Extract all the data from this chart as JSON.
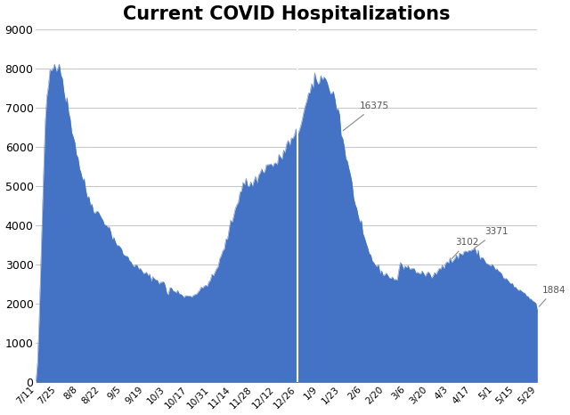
{
  "title": "Current COVID Hospitalizations",
  "title_fontsize": 15,
  "title_fontweight": "bold",
  "fill_color": "#4472C4",
  "background_color": "#FFFFFF",
  "vline_x": "12/26",
  "vline_color": "white",
  "ylim": [
    0,
    9000
  ],
  "yticks": [
    0,
    1000,
    2000,
    3000,
    4000,
    5000,
    6000,
    7000,
    8000,
    9000
  ],
  "x_tick_labels": [
    "7/11",
    "7/25",
    "8/8",
    "8/22",
    "9/5",
    "9/19",
    "10/3",
    "10/17",
    "10/31",
    "11/14",
    "11/28",
    "12/12",
    "12/26",
    "1/9",
    "1/23",
    "2/6",
    "2/20",
    "3/6",
    "3/20",
    "4/3",
    "4/17",
    "5/1",
    "5/15",
    "5/29"
  ],
  "data": {
    "7/11": 10,
    "7/12": 500,
    "7/13": 1500,
    "7/14": 2800,
    "7/15": 4200,
    "7/16": 5500,
    "7/17": 6500,
    "7/18": 7200,
    "7/19": 7600,
    "7/20": 7900,
    "7/21": 8000,
    "7/22": 8050,
    "7/23": 8080,
    "7/24": 8150,
    "7/25": 8200,
    "7/26": 8180,
    "7/27": 7950,
    "7/28": 7700,
    "7/29": 7500,
    "7/30": 7300,
    "7/31": 7100,
    "8/1": 6900,
    "8/2": 6700,
    "8/3": 6500,
    "8/4": 6300,
    "8/5": 6100,
    "8/6": 5900,
    "8/7": 5700,
    "8/8": 5500,
    "8/9": 5350,
    "8/10": 5200,
    "8/11": 5050,
    "8/12": 4900,
    "8/13": 4780,
    "8/14": 4680,
    "8/15": 4600,
    "8/16": 4530,
    "8/17": 4460,
    "8/18": 4400,
    "8/19": 4350,
    "8/20": 4300,
    "8/21": 4260,
    "8/22": 4200,
    "8/23": 4150,
    "8/24": 4100,
    "8/25": 4050,
    "8/26": 3980,
    "8/27": 3900,
    "8/28": 3820,
    "8/29": 3740,
    "8/30": 3680,
    "8/31": 3600,
    "9/1": 3520,
    "9/2": 3460,
    "9/3": 3400,
    "9/4": 3350,
    "9/5": 3300,
    "9/6": 3250,
    "9/7": 3200,
    "9/8": 3160,
    "9/9": 3120,
    "9/10": 3080,
    "9/11": 3040,
    "9/12": 3000,
    "9/13": 2960,
    "9/14": 2920,
    "9/15": 2890,
    "9/16": 2860,
    "9/17": 2830,
    "9/18": 2800,
    "9/19": 2770,
    "9/20": 2745,
    "9/21": 2720,
    "9/22": 2700,
    "9/23": 2680,
    "9/24": 2660,
    "9/25": 2640,
    "9/26": 2620,
    "9/27": 2600,
    "9/28": 2580,
    "9/29": 2560,
    "9/30": 2540,
    "10/1": 2510,
    "10/2": 2490,
    "10/3": 2300,
    "10/4": 2250,
    "10/5": 2380,
    "10/6": 2400,
    "10/7": 2350,
    "10/8": 2300,
    "10/9": 2280,
    "10/10": 2310,
    "10/11": 2280,
    "10/12": 2260,
    "10/13": 2230,
    "10/14": 2210,
    "10/15": 2200,
    "10/16": 2200,
    "10/17": 2200,
    "10/18": 2210,
    "10/19": 2220,
    "10/20": 2230,
    "10/21": 2250,
    "10/22": 2270,
    "10/23": 2300,
    "10/24": 2330,
    "10/25": 2360,
    "10/26": 2400,
    "10/27": 2440,
    "10/28": 2480,
    "10/29": 2520,
    "10/30": 2560,
    "10/31": 2600,
    "11/1": 2660,
    "11/2": 2720,
    "11/3": 2800,
    "11/4": 2900,
    "11/5": 3000,
    "11/6": 3100,
    "11/7": 3200,
    "11/8": 3320,
    "11/9": 3450,
    "11/10": 3580,
    "11/11": 3720,
    "11/12": 3860,
    "11/13": 4000,
    "11/14": 4140,
    "11/15": 4280,
    "11/16": 4420,
    "11/17": 4560,
    "11/18": 4700,
    "11/19": 4840,
    "11/20": 4960,
    "11/21": 5060,
    "11/22": 5100,
    "11/23": 5080,
    "11/24": 5050,
    "11/25": 5020,
    "11/26": 5050,
    "11/27": 5080,
    "11/28": 5110,
    "11/29": 5150,
    "11/30": 5200,
    "12/1": 5260,
    "12/2": 5320,
    "12/3": 5380,
    "12/4": 5440,
    "12/5": 5480,
    "12/6": 5500,
    "12/7": 5520,
    "12/8": 5530,
    "12/9": 5540,
    "12/10": 5550,
    "12/11": 5560,
    "12/12": 5570,
    "12/13": 5600,
    "12/14": 5650,
    "12/15": 5700,
    "12/16": 5780,
    "12/17": 5860,
    "12/18": 5940,
    "12/19": 6010,
    "12/20": 6060,
    "12/21": 6100,
    "12/22": 6140,
    "12/23": 6180,
    "12/24": 6220,
    "12/25": 6280,
    "12/26": 6350,
    "12/27": 6480,
    "12/28": 6620,
    "12/29": 6780,
    "12/30": 6900,
    "12/31": 7020,
    "1/1": 7150,
    "1/2": 7280,
    "1/3": 7380,
    "1/4": 7450,
    "1/5": 7520,
    "1/6": 7580,
    "1/7": 7640,
    "1/8": 7700,
    "1/9": 7750,
    "1/10": 7760,
    "1/11": 7730,
    "1/12": 7700,
    "1/13": 7680,
    "1/14": 7650,
    "1/15": 7600,
    "1/16": 7520,
    "1/17": 7420,
    "1/18": 7320,
    "1/19": 7200,
    "1/20": 7080,
    "1/21": 6950,
    "1/22": 6780,
    "1/23": 6375,
    "1/24": 6200,
    "1/25": 6000,
    "1/26": 5800,
    "1/27": 5600,
    "1/28": 5400,
    "1/29": 5200,
    "1/30": 5000,
    "1/31": 4800,
    "2/1": 4600,
    "2/2": 4400,
    "2/3": 4200,
    "2/4": 4050,
    "2/5": 3900,
    "2/6": 3760,
    "2/7": 3620,
    "2/8": 3500,
    "2/9": 3400,
    "2/10": 3300,
    "2/11": 3210,
    "2/12": 3130,
    "2/13": 3060,
    "2/14": 3000,
    "2/15": 2950,
    "2/16": 2900,
    "2/17": 2860,
    "2/18": 2820,
    "2/19": 2790,
    "2/20": 2760,
    "2/21": 2740,
    "2/22": 2720,
    "2/23": 2700,
    "2/24": 2680,
    "2/25": 2660,
    "2/26": 2640,
    "2/27": 2620,
    "2/28": 2600,
    "3/1": 2880,
    "3/2": 2960,
    "3/3": 2980,
    "3/4": 2970,
    "3/5": 2960,
    "3/6": 2950,
    "3/7": 2940,
    "3/8": 2920,
    "3/9": 2900,
    "3/10": 2880,
    "3/11": 2860,
    "3/12": 2840,
    "3/13": 2820,
    "3/14": 2800,
    "3/15": 2785,
    "3/16": 2770,
    "3/17": 2760,
    "3/18": 2750,
    "3/19": 2740,
    "3/20": 2730,
    "3/21": 2720,
    "3/22": 2720,
    "3/23": 2730,
    "3/24": 2750,
    "3/25": 2780,
    "3/26": 2820,
    "3/27": 2870,
    "3/28": 2930,
    "3/29": 2990,
    "3/30": 3040,
    "3/31": 3075,
    "4/1": 3085,
    "4/2": 3095,
    "4/3": 3102,
    "4/4": 3115,
    "4/5": 3130,
    "4/6": 3150,
    "4/7": 3180,
    "4/8": 3210,
    "4/9": 3240,
    "4/10": 3270,
    "4/11": 3295,
    "4/12": 3315,
    "4/13": 3335,
    "4/14": 3350,
    "4/15": 3360,
    "4/16": 3368,
    "4/17": 3371,
    "4/18": 3360,
    "4/19": 3340,
    "4/20": 3310,
    "4/21": 3270,
    "4/22": 3230,
    "4/23": 3190,
    "4/24": 3150,
    "4/25": 3100,
    "4/26": 3060,
    "4/27": 3030,
    "4/28": 3010,
    "4/29": 2990,
    "4/30": 2970,
    "5/1": 2940,
    "5/2": 2900,
    "5/3": 2860,
    "5/4": 2820,
    "5/5": 2780,
    "5/6": 2740,
    "5/7": 2700,
    "5/8": 2660,
    "5/9": 2620,
    "5/10": 2580,
    "5/11": 2545,
    "5/12": 2510,
    "5/13": 2480,
    "5/14": 2450,
    "5/15": 2410,
    "5/16": 2380,
    "5/17": 2350,
    "5/18": 2320,
    "5/19": 2290,
    "5/20": 2260,
    "5/21": 2230,
    "5/22": 2200,
    "5/23": 2170,
    "5/24": 2140,
    "5/25": 2110,
    "5/26": 2080,
    "5/27": 2050,
    "5/28": 2000,
    "5/29": 1884
  }
}
